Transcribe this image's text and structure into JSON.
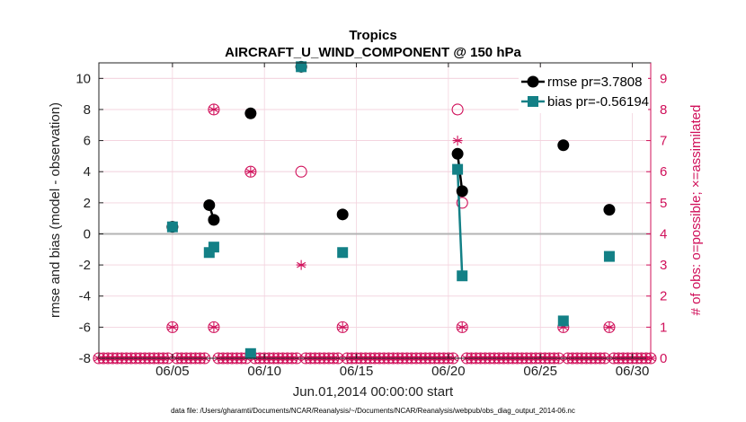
{
  "chart_data": {
    "type": "scatter",
    "title": "Tropics",
    "subtitle": "AIRCRAFT_U_WIND_COMPONENT @ 150 hPa",
    "xlabel": "Jun.01,2014 00:00:00 start",
    "ylabel": "rmse and bias (model - observation)",
    "ylabel_right": "# of obs: o=possible; ×=assimilated",
    "xlim": [
      1,
      31
    ],
    "ylim": [
      -8,
      11
    ],
    "ylim_right": [
      0,
      9.5
    ],
    "x_ticks": [
      5,
      10,
      15,
      20,
      25,
      30
    ],
    "x_tick_labels": [
      "06/05",
      "06/10",
      "06/15",
      "06/20",
      "06/25",
      "06/30"
    ],
    "y_ticks": [
      -8,
      -6,
      -4,
      -2,
      0,
      2,
      4,
      6,
      8,
      10
    ],
    "y_tick_labels": [
      "-8",
      "-6",
      "-4",
      "-2",
      "0",
      "2",
      "4",
      "6",
      "8",
      "10"
    ],
    "y_right_ticks": [
      0,
      1,
      2,
      3,
      4,
      5,
      6,
      7,
      8,
      9
    ],
    "y_right_tick_labels": [
      "0",
      "1",
      "2",
      "3",
      "4",
      "5",
      "6",
      "7",
      "8",
      "9"
    ],
    "grid": true,
    "legend_position": "top-right",
    "series": [
      {
        "name": "rmse pr=3.7808",
        "color": "#000000",
        "marker": "circle",
        "segments": [
          [
            [
              5.0,
              0.45
            ]
          ],
          [
            [
              7.0,
              1.85
            ],
            [
              7.25,
              0.9
            ]
          ],
          [
            [
              9.25,
              7.75
            ]
          ],
          [
            [
              12.0,
              10.75
            ]
          ],
          [
            [
              14.25,
              1.25
            ]
          ],
          [
            [
              20.5,
              5.15
            ],
            [
              20.75,
              2.75
            ]
          ],
          [
            [
              26.25,
              5.7
            ]
          ],
          [
            [
              28.75,
              1.55
            ]
          ]
        ]
      },
      {
        "name": "bias pr=-0.56194",
        "color": "#138086",
        "marker": "square",
        "segments": [
          [
            [
              5.0,
              0.45
            ]
          ],
          [
            [
              7.0,
              -1.2
            ],
            [
              7.25,
              -0.85
            ]
          ],
          [
            [
              9.25,
              -7.7
            ]
          ],
          [
            [
              12.0,
              10.75
            ]
          ],
          [
            [
              14.25,
              -1.2
            ]
          ],
          [
            [
              20.5,
              4.15
            ],
            [
              20.75,
              -2.7
            ]
          ],
          [
            [
              26.25,
              -5.6
            ]
          ],
          [
            [
              28.75,
              -1.45
            ]
          ]
        ]
      }
    ],
    "obs_possible": {
      "color": "#d0105a",
      "points": [
        [
          5.0,
          1
        ],
        [
          7.25,
          8
        ],
        [
          7.25,
          1
        ],
        [
          9.25,
          6
        ],
        [
          12.0,
          6
        ],
        [
          14.25,
          1
        ],
        [
          20.5,
          8
        ],
        [
          20.75,
          5
        ],
        [
          20.75,
          1
        ],
        [
          26.25,
          1
        ],
        [
          28.75,
          1
        ]
      ]
    },
    "obs_assimilated": {
      "color": "#d0105a",
      "points": [
        [
          5.0,
          1
        ],
        [
          7.25,
          8
        ],
        [
          7.25,
          1
        ],
        [
          9.25,
          6
        ],
        [
          12.0,
          3
        ],
        [
          14.25,
          1
        ],
        [
          20.5,
          7
        ],
        [
          20.75,
          1
        ],
        [
          26.25,
          1
        ],
        [
          28.75,
          1
        ]
      ]
    },
    "zero_obs_run": {
      "color": "#d0105a",
      "start": 1.0,
      "end": 31.0,
      "step": 0.25,
      "skip": [
        5.0,
        7.0,
        7.25,
        9.25,
        12.0,
        14.25,
        20.5,
        20.75,
        26.25,
        28.75
      ],
      "value": 0
    }
  },
  "footnote": "data file: /Users/gharamti/Documents/NCAR/Reanalysis/~/Documents/NCAR/Reanalysis/webpub/obs_diag_output_2014-06.nc"
}
